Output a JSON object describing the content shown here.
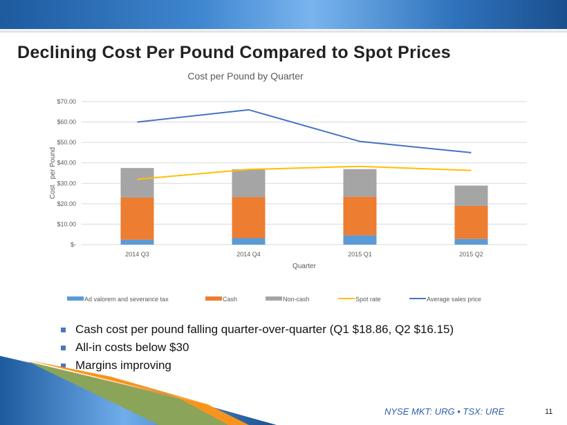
{
  "slide": {
    "title": "Declining Cost Per Pound Compared to Spot Prices",
    "footer": "NYSE MKT: URG • TSX: URE",
    "page_number": "11",
    "bullets": [
      "Cash cost per pound falling quarter-over-quarter (Q1 $18.86, Q2 $16.15)",
      "All-in costs below $30",
      "Margins improving"
    ]
  },
  "chart_data": {
    "type": "bar",
    "stacked": true,
    "title": "Cost per Pound by Quarter",
    "xlabel": "Quarter",
    "ylabel": "Cost   per Pound",
    "ylim": [
      0,
      70
    ],
    "yticks": [
      0,
      10,
      20,
      30,
      40,
      50,
      60,
      70
    ],
    "ytick_labels": [
      "$-",
      "$10.00",
      "$20.00",
      "$30.00",
      "$40.00",
      "$50.00",
      "$60.00",
      "$70.00"
    ],
    "grid": true,
    "legend": "bottom",
    "categories": [
      "2014 Q3",
      "2014 Q4",
      "2015 Q1",
      "2015 Q2"
    ],
    "series": [
      {
        "name": "Ad valorem and severance tax",
        "kind": "bar",
        "color": "#5b9bd5",
        "values": [
          2.4,
          3.2,
          4.6,
          2.8
        ]
      },
      {
        "name": "Cash",
        "kind": "bar",
        "color": "#ed7d31",
        "values": [
          20.6,
          20.1,
          18.86,
          16.15
        ]
      },
      {
        "name": "Non-cash",
        "kind": "bar",
        "color": "#a5a5a5",
        "values": [
          14.5,
          13.6,
          13.5,
          9.95
        ]
      },
      {
        "name": "Spot rate",
        "kind": "line",
        "color": "#ffc000",
        "values": [
          32.0,
          36.8,
          38.3,
          36.3
        ]
      },
      {
        "name": "Average sales price",
        "kind": "line",
        "color": "#4472c4",
        "values": [
          60.0,
          66.0,
          50.5,
          45.0
        ]
      }
    ]
  }
}
